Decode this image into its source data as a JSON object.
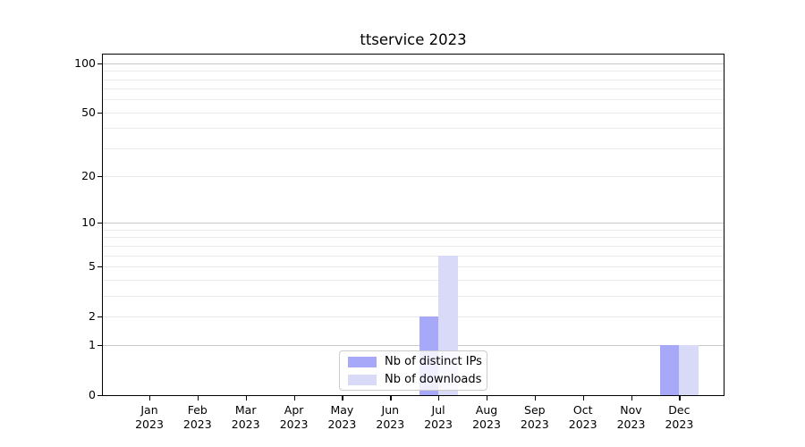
{
  "colors": {
    "series_ips": "#a8a8f8",
    "series_downloads": "#d9d9f8",
    "grid_major": "#c6c6c6",
    "grid_minor": "#ebebeb",
    "axis": "#000000",
    "legend_border": "#cccccc"
  },
  "chart_data": {
    "type": "bar",
    "title": "ttservice 2023",
    "yscale": "log1p",
    "ylim": [
      0,
      113
    ],
    "yticks": [
      0,
      1,
      2,
      5,
      10,
      20,
      50,
      100
    ],
    "grid": "both",
    "grid_major_at": [
      1,
      10,
      100
    ],
    "grid_minor_at": [
      2,
      3,
      4,
      5,
      6,
      7,
      8,
      9,
      20,
      30,
      40,
      50,
      60,
      70,
      80,
      90
    ],
    "legend_position": "lower center",
    "categories": [
      "Jan",
      "Feb",
      "Mar",
      "Apr",
      "May",
      "Jun",
      "Jul",
      "Aug",
      "Sep",
      "Oct",
      "Nov",
      "Dec"
    ],
    "year": "2023",
    "series": [
      {
        "name": "Nb of distinct IPs",
        "color": "#a8a8f8",
        "values": [
          0,
          0,
          0,
          0,
          0,
          0,
          2,
          0,
          0,
          0,
          0,
          1
        ]
      },
      {
        "name": "Nb of downloads",
        "color": "#d9d9f8",
        "values": [
          0,
          0,
          0,
          0,
          0,
          0,
          6,
          0,
          0,
          0,
          0,
          1
        ]
      }
    ]
  }
}
